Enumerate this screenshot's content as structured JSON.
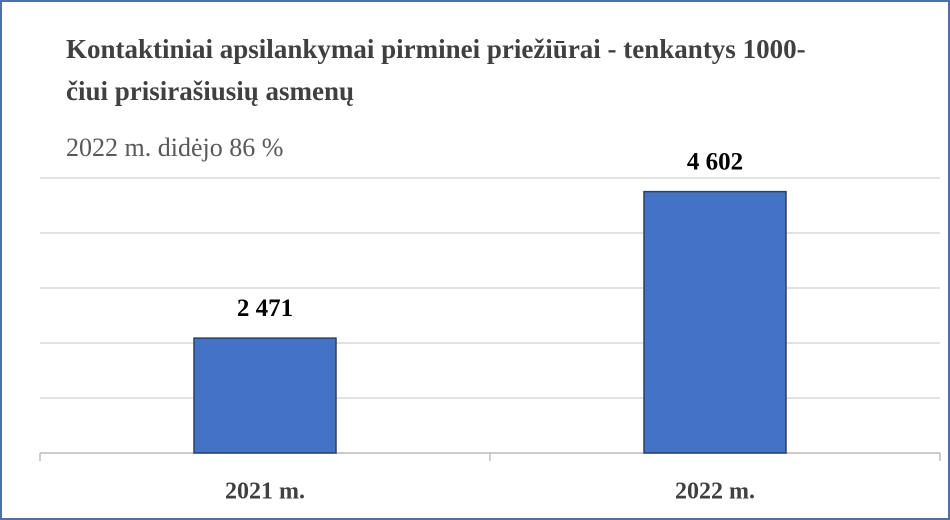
{
  "chart_data": {
    "type": "bar",
    "title": "Kontaktiniai apsilankymai pirminei priežiūrai - tenkantys 1000-čiui prisirašiusių asmenų",
    "subtitle": "2022 m. didėjo 86 %",
    "categories": [
      "2021 m.",
      "2022 m."
    ],
    "values": [
      2471,
      4602
    ],
    "value_labels": [
      "2 471",
      "4 602"
    ],
    "color": "#4472c4",
    "ylim": [
      800,
      4800
    ],
    "yticks": [
      800,
      1600,
      2400,
      3200,
      4000,
      4800
    ],
    "grid": true
  }
}
